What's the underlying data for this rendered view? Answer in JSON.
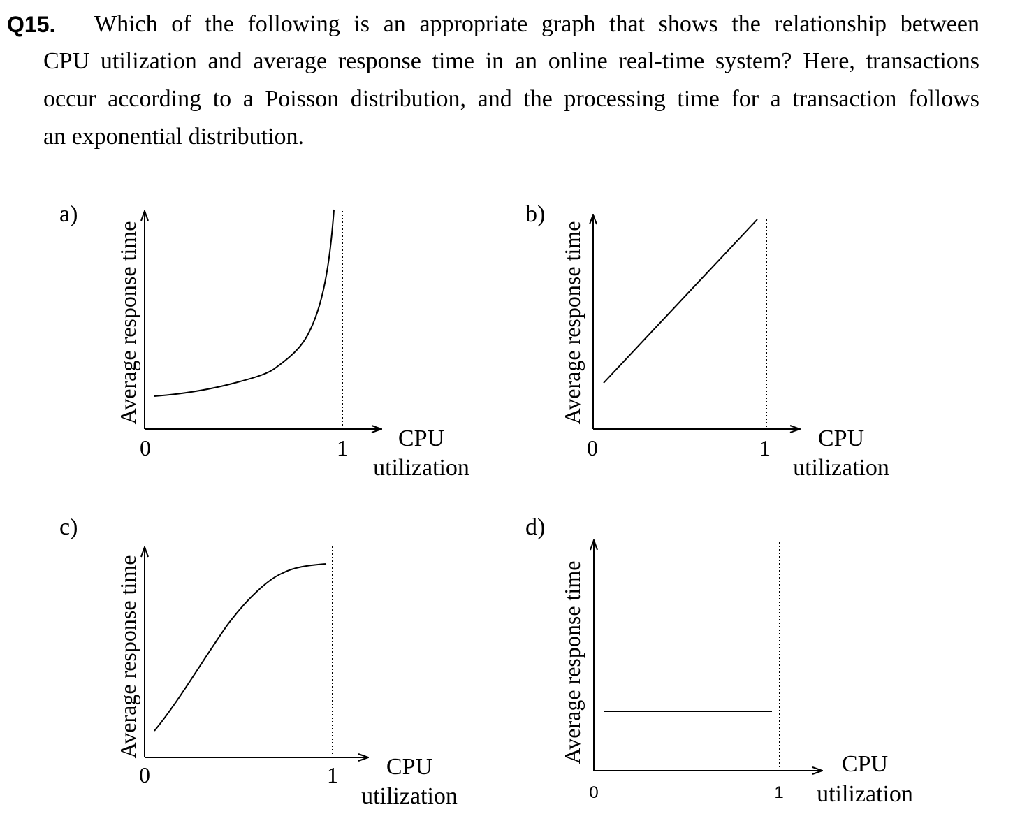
{
  "question": {
    "number": "Q15.",
    "lines": [
      "Which of the following is an appropriate graph that shows the relationship between",
      "CPU utilization and average response time in an online real-time system? Here, transactions",
      "occur according to a Poisson distribution, and the processing time for a transaction follows",
      "an exponential distribution."
    ]
  },
  "graphs": [
    {
      "option": "a)",
      "ylabel": "Average response time",
      "xlabel_line1": "CPU",
      "xlabel_line2": "utilization",
      "tick0": "0",
      "tick1": "1"
    },
    {
      "option": "b)",
      "ylabel": "Average response time",
      "xlabel_line1": "CPU",
      "xlabel_line2": "utilization",
      "tick0": "0",
      "tick1": "1"
    },
    {
      "option": "c)",
      "ylabel": "Average response time",
      "xlabel_line1": "CPU",
      "xlabel_line2": "utilization",
      "tick0": "0",
      "tick1": "1"
    },
    {
      "option": "d)",
      "ylabel": "Average response time",
      "xlabel_line1": "CPU",
      "xlabel_line2": "utilization",
      "tick0": "0",
      "tick1": "1"
    }
  ]
}
